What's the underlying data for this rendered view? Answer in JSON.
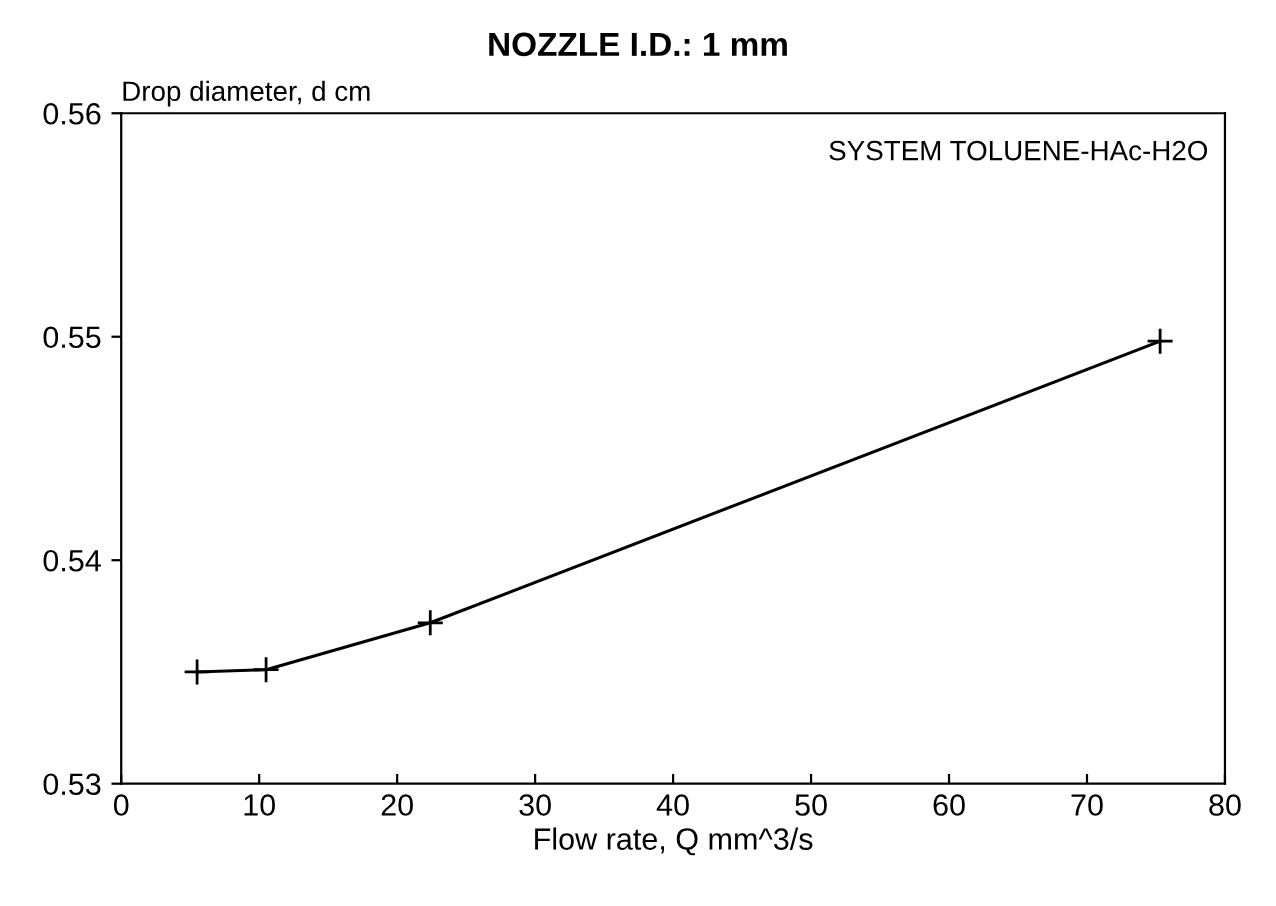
{
  "chart_data": {
    "type": "line",
    "title": "NOZZLE I.D.: 1 mm",
    "xlabel": "Flow rate, Q mm^3/s",
    "ylabel": "Drop diameter, d cm",
    "annotations": [
      "SYSTEM TOLUENE-HAc-H2O"
    ],
    "x": [
      5.5,
      10.5,
      22.4,
      75.3
    ],
    "series": [
      {
        "color": "#000000",
        "values": [
          0.535,
          0.5351,
          0.5372,
          0.5498
        ]
      }
    ],
    "marker": "cross",
    "line_style": "solid",
    "grid": false,
    "legend": false,
    "xlim": [
      0,
      80
    ],
    "ylim": [
      0.53,
      0.56
    ],
    "xticks": [
      0,
      10,
      20,
      30,
      40,
      50,
      60,
      70,
      80
    ],
    "yticks": [
      0.53,
      0.54,
      0.55,
      0.56
    ]
  }
}
